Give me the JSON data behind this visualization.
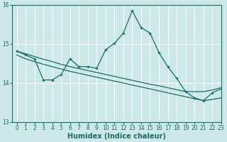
{
  "bg_color": "#cce8e8",
  "line_color": "#1a6b6b",
  "grid_color": "#ffffff",
  "xlabel": "Humidex (Indice chaleur)",
  "ylim": [
    13,
    16
  ],
  "xlim": [
    -0.5,
    23
  ],
  "yticks": [
    13,
    14,
    15,
    16
  ],
  "xticks": [
    0,
    1,
    2,
    3,
    4,
    5,
    6,
    7,
    8,
    9,
    10,
    11,
    12,
    13,
    14,
    15,
    16,
    17,
    18,
    19,
    20,
    21,
    22,
    23
  ],
  "line1_x": [
    0,
    1,
    2,
    3,
    4,
    5,
    6,
    7,
    8,
    9,
    10,
    11,
    12,
    13,
    14,
    15,
    16,
    17,
    18,
    19,
    20,
    21,
    22,
    23
  ],
  "line1_y": [
    14.82,
    14.72,
    14.62,
    14.08,
    14.08,
    14.22,
    14.62,
    14.42,
    14.42,
    14.38,
    14.85,
    15.02,
    15.28,
    15.85,
    15.42,
    15.28,
    14.78,
    14.42,
    14.12,
    13.78,
    13.62,
    13.55,
    13.75,
    13.85
  ],
  "line2_x": [
    0,
    1,
    2,
    3,
    4,
    5,
    6,
    7,
    8,
    9,
    10,
    11,
    12,
    13,
    14,
    15,
    16,
    17,
    18,
    19,
    20,
    21,
    22,
    23
  ],
  "line2_y": [
    14.82,
    14.75,
    14.68,
    14.61,
    14.55,
    14.48,
    14.42,
    14.37,
    14.32,
    14.27,
    14.22,
    14.17,
    14.12,
    14.07,
    14.02,
    13.97,
    13.93,
    13.88,
    13.83,
    13.78,
    13.78,
    13.78,
    13.82,
    13.88
  ],
  "line3_x": [
    0,
    1,
    2,
    3,
    4,
    5,
    6,
    7,
    8,
    9,
    10,
    11,
    12,
    13,
    14,
    15,
    16,
    17,
    18,
    19,
    20,
    21,
    22,
    23
  ],
  "line3_y": [
    14.72,
    14.62,
    14.55,
    14.48,
    14.42,
    14.36,
    14.3,
    14.25,
    14.2,
    14.15,
    14.1,
    14.05,
    14.0,
    13.95,
    13.9,
    13.85,
    13.8,
    13.75,
    13.7,
    13.65,
    13.6,
    13.55,
    13.58,
    13.62
  ]
}
